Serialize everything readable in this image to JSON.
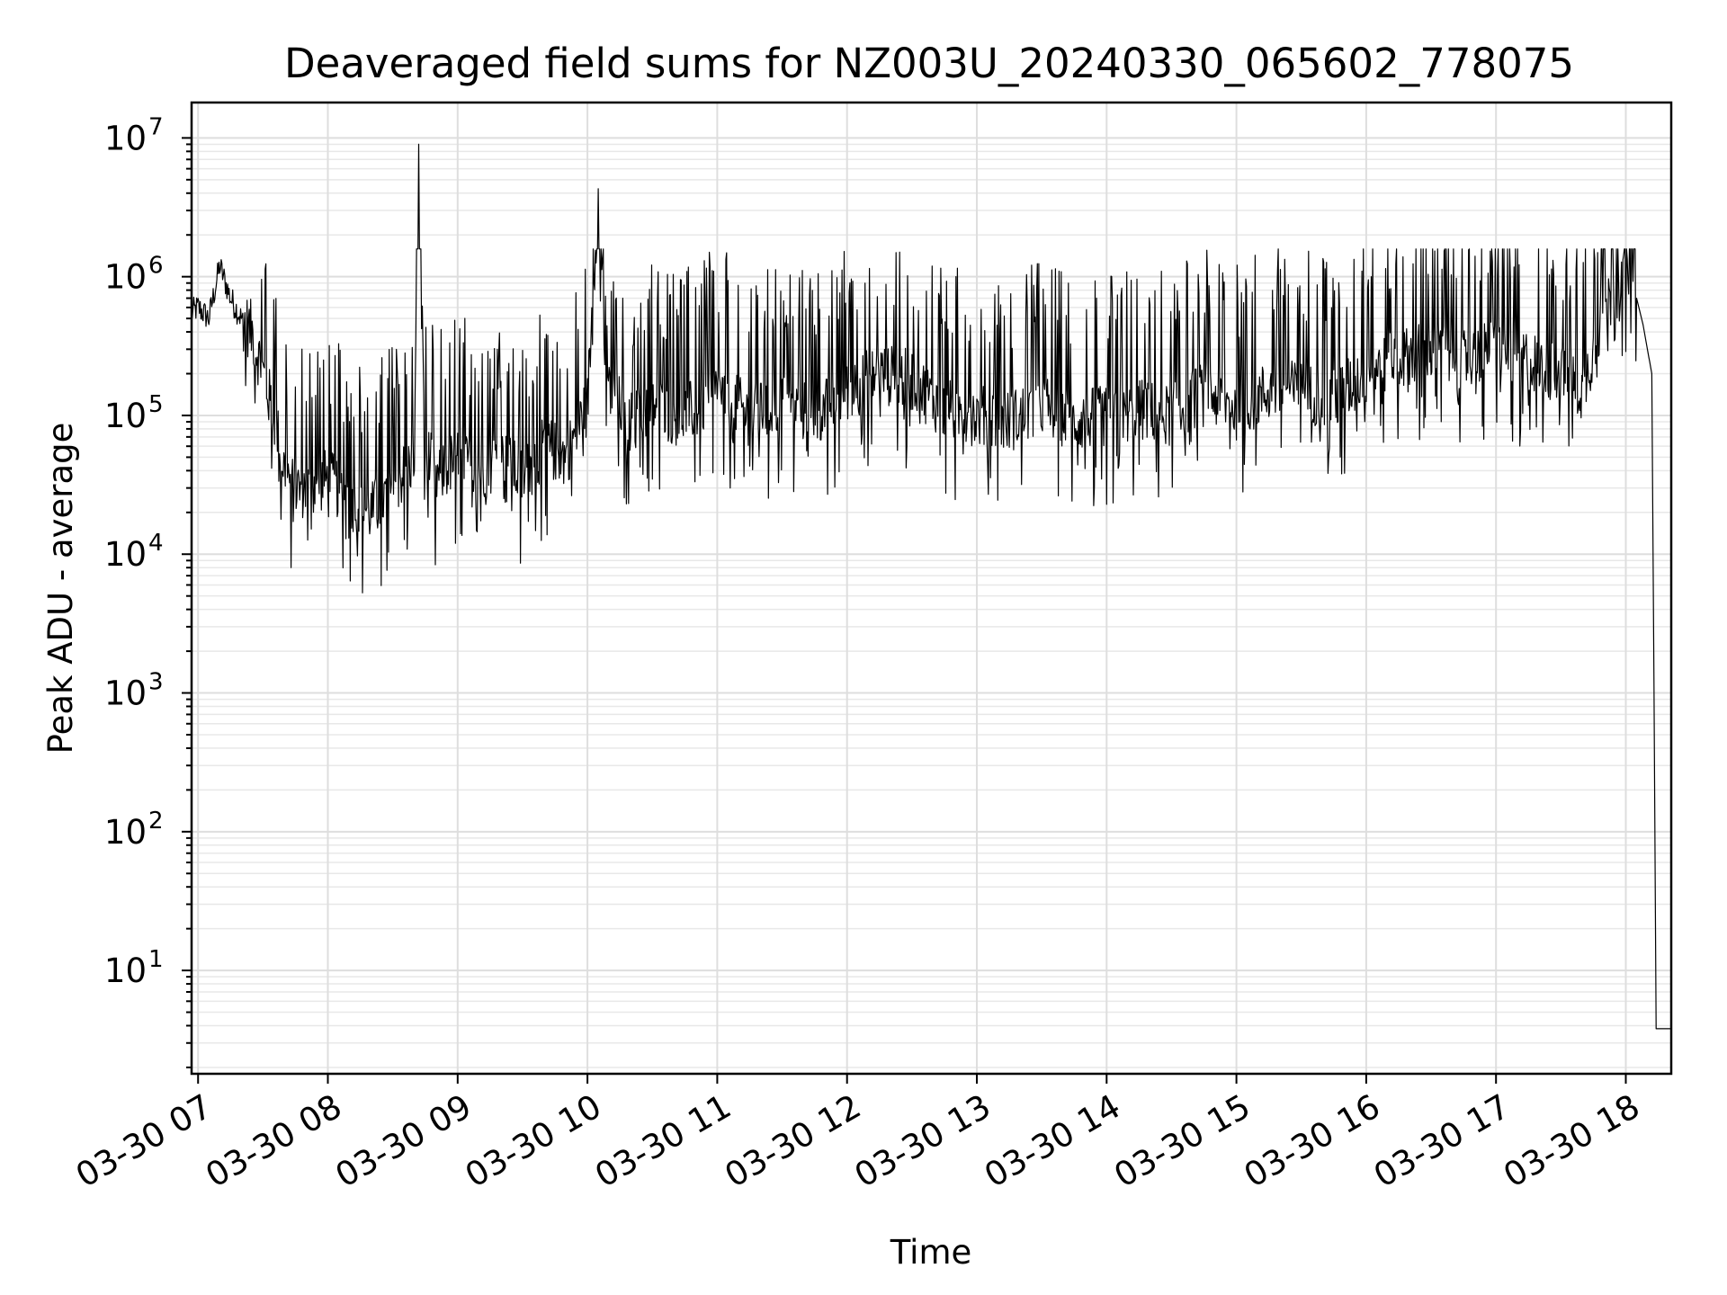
{
  "chart_data": {
    "type": "line",
    "title": "Deaveraged field sums for NZ003U_20240330_065602_778075",
    "xlabel": "Time",
    "ylabel": "Peak ADU - average",
    "yscale": "log",
    "grid": "major and minor",
    "line_color": "#000000",
    "xlim": [
      "03-30 06:57",
      "03-30 18:21"
    ],
    "ylim": [
      1.8,
      18000000
    ],
    "x_tick_labels": [
      "03-30 07",
      "03-30 08",
      "03-30 09",
      "03-30 10",
      "03-30 11",
      "03-30 12",
      "03-30 13",
      "03-30 14",
      "03-30 15",
      "03-30 16",
      "03-30 17",
      "03-30 18"
    ],
    "y_ticks": [
      {
        "base": "10",
        "exp": "1",
        "value": 10
      },
      {
        "base": "10",
        "exp": "2",
        "value": 100
      },
      {
        "base": "10",
        "exp": "3",
        "value": 1000
      },
      {
        "base": "10",
        "exp": "4",
        "value": 10000
      },
      {
        "base": "10",
        "exp": "5",
        "value": 100000
      },
      {
        "base": "10",
        "exp": "6",
        "value": 1000000
      },
      {
        "base": "10",
        "exp": "7",
        "value": 10000000
      }
    ],
    "series": [
      {
        "x": [
          "03-30 06:57",
          "03-30 07:00",
          "03-30 07:05",
          "03-30 07:10",
          "03-30 07:15",
          "03-30 07:20",
          "03-30 07:25",
          "03-30 07:30",
          "03-30 07:35",
          "03-30 07:40",
          "03-30 07:45",
          "03-30 07:50",
          "03-30 08:00",
          "03-30 08:10",
          "03-30 08:20",
          "03-30 08:30",
          "03-30 08:40",
          "03-30 08:42",
          "03-30 08:45",
          "03-30 08:50",
          "03-30 09:00",
          "03-30 09:10",
          "03-30 09:20",
          "03-30 09:30",
          "03-30 09:40",
          "03-30 09:50",
          "03-30 10:00",
          "03-30 10:05",
          "03-30 10:10",
          "03-30 10:20",
          "03-30 10:30",
          "03-30 10:40",
          "03-30 10:50",
          "03-30 11:00",
          "03-30 11:15",
          "03-30 11:30",
          "03-30 11:45",
          "03-30 12:00",
          "03-30 12:15",
          "03-30 12:30",
          "03-30 12:45",
          "03-30 13:00",
          "03-30 13:15",
          "03-30 13:30",
          "03-30 13:45",
          "03-30 14:00",
          "03-30 14:15",
          "03-30 14:30",
          "03-30 14:45",
          "03-30 15:00",
          "03-30 15:15",
          "03-30 15:30",
          "03-30 15:45",
          "03-30 16:00",
          "03-30 16:15",
          "03-30 16:30",
          "03-30 16:45",
          "03-30 17:00",
          "03-30 17:15",
          "03-30 17:30",
          "03-30 17:40",
          "03-30 17:50",
          "03-30 18:00",
          "03-30 18:03",
          "03-30 18:05",
          "03-30 18:08",
          "03-30 18:10",
          "03-30 18:12",
          "03-30 18:13",
          "03-30 18:14",
          "03-30 18:21"
        ],
        "y": [
          550000,
          600000,
          500000,
          1200000,
          700000,
          500000,
          400000,
          200000,
          100000,
          40000,
          30000,
          30000,
          35000,
          25000,
          20000,
          30000,
          50000,
          9000000,
          60000,
          35000,
          50000,
          40000,
          50000,
          35000,
          60000,
          50000,
          120000,
          4300000,
          150000,
          90000,
          120000,
          100000,
          110000,
          150000,
          100000,
          120000,
          100000,
          150000,
          200000,
          180000,
          110000,
          100000,
          90000,
          120000,
          90000,
          100000,
          110000,
          100000,
          150000,
          110000,
          150000,
          150000,
          130000,
          200000,
          250000,
          300000,
          250000,
          300000,
          250000,
          200000,
          150000,
          600000,
          900000,
          1800000,
          700000,
          450000,
          300000,
          200000,
          1200,
          3.8,
          3.8
        ]
      }
    ]
  }
}
